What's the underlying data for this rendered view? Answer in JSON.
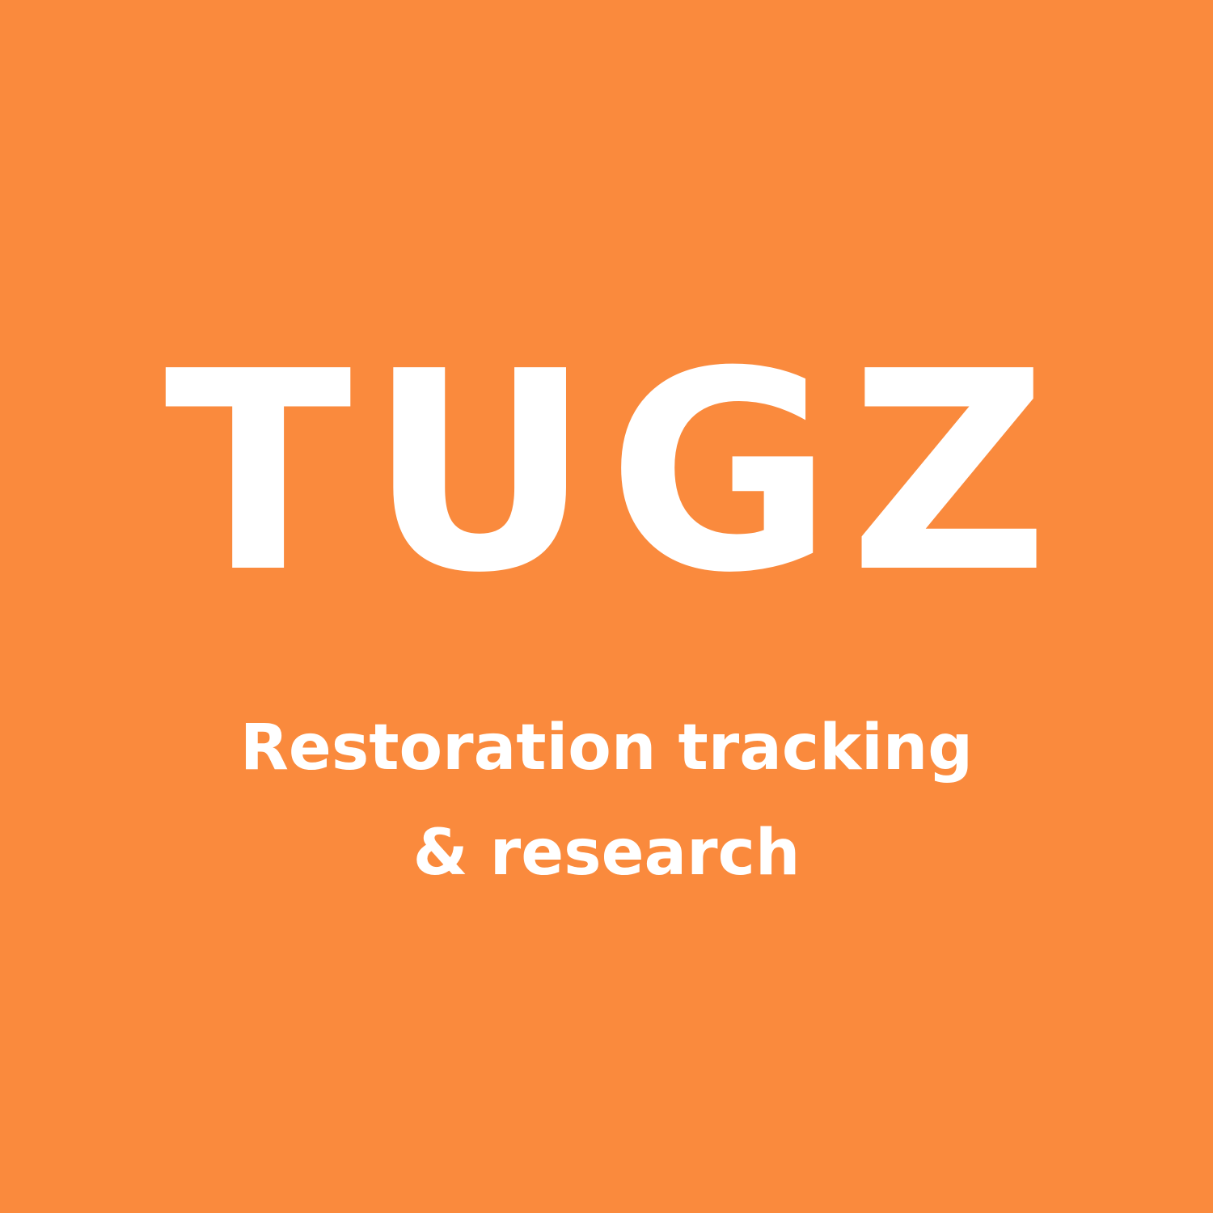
{
  "brand": {
    "name": "TUGZ",
    "tagline_line1": "Restoration tracking",
    "tagline_line2": "& research"
  },
  "colors": {
    "background": "#FA8A3D",
    "text": "#FFFFFF"
  }
}
